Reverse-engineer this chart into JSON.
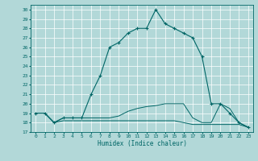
{
  "xlabel": "Humidex (Indice chaleur)",
  "background_color": "#b2d8d8",
  "grid_color": "#ffffff",
  "line_color": "#006666",
  "xlim": [
    -0.5,
    23.5
  ],
  "ylim": [
    17,
    30.5
  ],
  "xticks": [
    0,
    1,
    2,
    3,
    4,
    5,
    6,
    7,
    8,
    9,
    10,
    11,
    12,
    13,
    14,
    15,
    16,
    17,
    18,
    19,
    20,
    21,
    22,
    23
  ],
  "yticks": [
    17,
    18,
    19,
    20,
    21,
    22,
    23,
    24,
    25,
    26,
    27,
    28,
    29,
    30
  ],
  "line1_x": [
    0,
    1,
    2,
    3,
    4,
    5,
    6,
    7,
    8,
    9,
    10,
    11,
    12,
    13,
    14,
    15,
    16,
    17,
    18,
    19,
    20,
    21,
    22,
    23
  ],
  "line1_y": [
    19.0,
    19.0,
    18.0,
    18.5,
    18.5,
    18.5,
    21.0,
    23.0,
    26.0,
    26.5,
    27.5,
    28.0,
    28.0,
    30.0,
    28.5,
    28.0,
    27.5,
    27.0,
    25.0,
    20.0,
    20.0,
    19.0,
    18.0,
    17.5
  ],
  "line2_x": [
    0,
    1,
    2,
    3,
    4,
    5,
    6,
    7,
    8,
    9,
    10,
    11,
    12,
    13,
    14,
    15,
    16,
    17,
    18,
    19,
    20,
    21,
    22,
    23
  ],
  "line2_y": [
    19.0,
    19.0,
    18.0,
    18.2,
    18.2,
    18.2,
    18.2,
    18.2,
    18.2,
    18.2,
    18.2,
    18.2,
    18.2,
    18.2,
    18.2,
    18.2,
    18.0,
    17.8,
    17.8,
    17.8,
    17.8,
    17.8,
    17.8,
    17.5
  ],
  "line3_x": [
    0,
    1,
    2,
    3,
    4,
    5,
    6,
    7,
    8,
    9,
    10,
    11,
    12,
    13,
    14,
    15,
    16,
    17,
    18,
    19,
    20,
    21,
    22,
    23
  ],
  "line3_y": [
    19.0,
    19.0,
    18.0,
    18.5,
    18.5,
    18.5,
    18.5,
    18.5,
    18.5,
    18.7,
    19.2,
    19.5,
    19.7,
    19.8,
    20.0,
    20.0,
    20.0,
    18.5,
    18.0,
    18.0,
    20.0,
    19.5,
    18.0,
    17.5
  ]
}
